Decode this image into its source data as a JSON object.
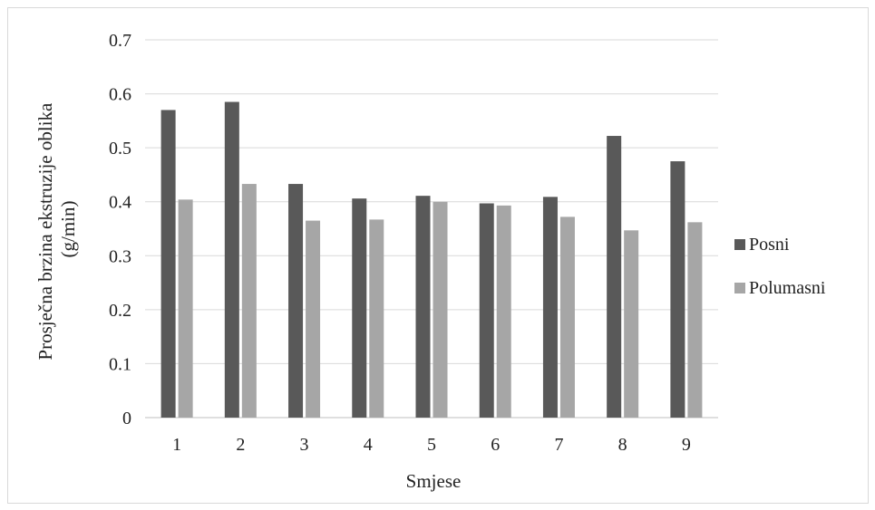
{
  "chart_data": {
    "type": "bar",
    "categories": [
      "1",
      "2",
      "3",
      "4",
      "5",
      "6",
      "7",
      "8",
      "9"
    ],
    "series": [
      {
        "name": "Posni",
        "color": "#595959",
        "values": [
          0.57,
          0.585,
          0.433,
          0.406,
          0.411,
          0.397,
          0.409,
          0.522,
          0.475
        ]
      },
      {
        "name": "Polumasni",
        "color": "#a6a6a6",
        "values": [
          0.404,
          0.433,
          0.365,
          0.367,
          0.4,
          0.393,
          0.372,
          0.347,
          0.362
        ]
      }
    ],
    "title": "",
    "xlabel": "Smjese",
    "ylabel_line1": "Prosječna brzina ekstruzije oblika",
    "ylabel_line2": "(g/min)",
    "ylim": [
      0,
      0.7
    ],
    "yticks": [
      "0",
      "0.1",
      "0.2",
      "0.3",
      "0.4",
      "0.5",
      "0.6",
      "0.7"
    ],
    "gridlines": true,
    "gridline_color": "#d9d9d9",
    "legend_position": "right"
  }
}
